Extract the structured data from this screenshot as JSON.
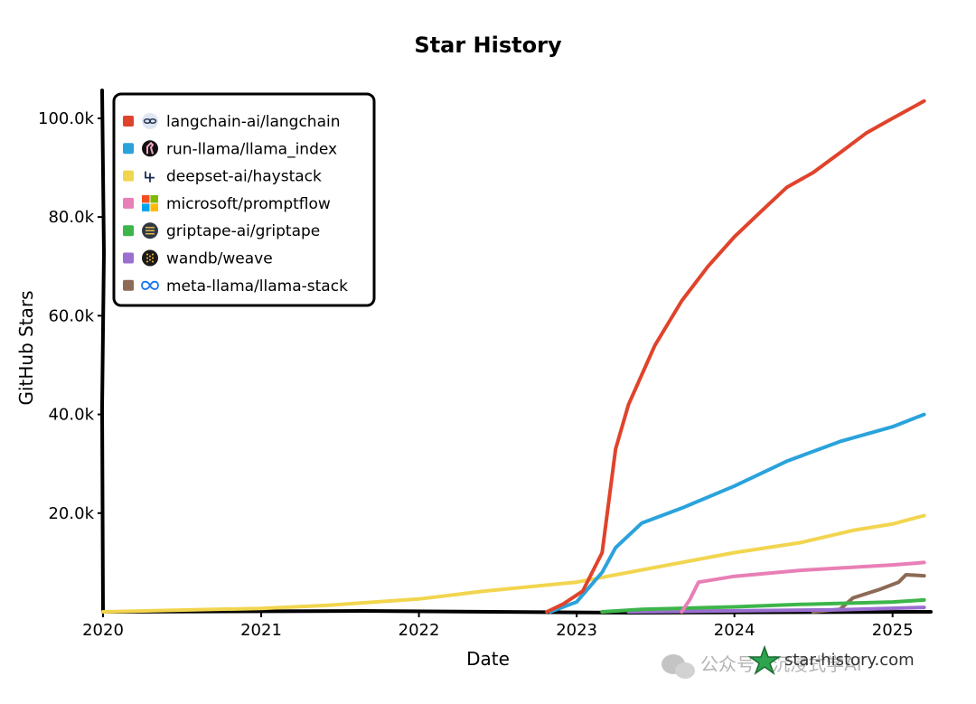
{
  "chart_data": {
    "type": "line",
    "title": "Star History",
    "xlabel": "Date",
    "ylabel": "GitHub Stars",
    "xlim": [
      "2020-01-01",
      "2025-03-20"
    ],
    "ylim": [
      0,
      102000
    ],
    "x_ticks": [
      "2020",
      "2021",
      "2022",
      "2023",
      "2024",
      "2025"
    ],
    "y_ticks": [
      "20.0k",
      "40.0k",
      "60.0k",
      "80.0k",
      "100.0k"
    ],
    "y_tick_values": [
      20000,
      40000,
      60000,
      80000,
      100000
    ],
    "grid": false,
    "legend_position": "top-left",
    "series": [
      {
        "name": "langchain-ai/langchain",
        "color": "#e0432b",
        "icon": "parrot-chain-icon",
        "points": [
          [
            "2022-10-24",
            0
          ],
          [
            "2022-12-01",
            1600
          ],
          [
            "2023-01-15",
            4200
          ],
          [
            "2023-03-01",
            12000
          ],
          [
            "2023-04-01",
            33000
          ],
          [
            "2023-05-01",
            42000
          ],
          [
            "2023-07-01",
            54000
          ],
          [
            "2023-09-01",
            63000
          ],
          [
            "2023-11-01",
            70000
          ],
          [
            "2024-01-01",
            76000
          ],
          [
            "2024-03-01",
            81000
          ],
          [
            "2024-05-01",
            86000
          ],
          [
            "2024-07-01",
            89000
          ],
          [
            "2024-09-01",
            93000
          ],
          [
            "2024-11-01",
            97000
          ],
          [
            "2025-01-01",
            100000
          ],
          [
            "2025-03-15",
            103500
          ]
        ]
      },
      {
        "name": "run-llama/llama_index",
        "color": "#2aa3dc",
        "icon": "llama-icon",
        "points": [
          [
            "2022-11-01",
            0
          ],
          [
            "2023-01-01",
            2000
          ],
          [
            "2023-03-01",
            8000
          ],
          [
            "2023-04-01",
            13000
          ],
          [
            "2023-06-01",
            18000
          ],
          [
            "2023-09-01",
            21000
          ],
          [
            "2024-01-01",
            25500
          ],
          [
            "2024-05-01",
            30500
          ],
          [
            "2024-09-01",
            34500
          ],
          [
            "2025-01-01",
            37500
          ],
          [
            "2025-03-15",
            40000
          ]
        ]
      },
      {
        "name": "deepset-ai/haystack",
        "color": "#f2d54f",
        "icon": "haystack-icon",
        "points": [
          [
            "2020-01-01",
            0
          ],
          [
            "2020-06-01",
            300
          ],
          [
            "2021-01-01",
            700
          ],
          [
            "2021-06-01",
            1300
          ],
          [
            "2022-01-01",
            2600
          ],
          [
            "2022-06-01",
            4200
          ],
          [
            "2023-01-01",
            6000
          ],
          [
            "2023-06-01",
            8500
          ],
          [
            "2024-01-01",
            12000
          ],
          [
            "2024-06-01",
            14000
          ],
          [
            "2024-10-01",
            16500
          ],
          [
            "2025-01-01",
            17800
          ],
          [
            "2025-03-15",
            19500
          ]
        ]
      },
      {
        "name": "microsoft/promptflow",
        "color": "#e87fb6",
        "icon": "microsoft-icon",
        "points": [
          [
            "2023-09-01",
            0
          ],
          [
            "2023-09-20",
            2500
          ],
          [
            "2023-10-10",
            6000
          ],
          [
            "2024-01-01",
            7200
          ],
          [
            "2024-06-01",
            8400
          ],
          [
            "2025-01-01",
            9500
          ],
          [
            "2025-03-15",
            10000
          ]
        ]
      },
      {
        "name": "griptape-ai/griptape",
        "color": "#3db54a",
        "icon": "griptape-icon",
        "points": [
          [
            "2023-03-01",
            0
          ],
          [
            "2023-06-01",
            500
          ],
          [
            "2024-01-01",
            1000
          ],
          [
            "2024-06-01",
            1500
          ],
          [
            "2025-01-01",
            2000
          ],
          [
            "2025-03-15",
            2400
          ]
        ]
      },
      {
        "name": "wandb/weave",
        "color": "#9a6fd0",
        "icon": "wandb-icon",
        "points": [
          [
            "2023-05-01",
            0
          ],
          [
            "2024-01-01",
            200
          ],
          [
            "2024-09-01",
            400
          ],
          [
            "2025-03-15",
            900
          ]
        ]
      },
      {
        "name": "meta-llama/llama-stack",
        "color": "#8c6a55",
        "icon": "meta-infinity-icon",
        "points": [
          [
            "2024-07-01",
            0
          ],
          [
            "2024-09-01",
            500
          ],
          [
            "2024-10-01",
            2800
          ],
          [
            "2024-12-01",
            4500
          ],
          [
            "2025-01-15",
            6000
          ],
          [
            "2025-02-01",
            7500
          ],
          [
            "2025-03-15",
            7300
          ]
        ]
      }
    ]
  },
  "watermark": {
    "site": "star-history.com",
    "credit": "公众号 · 沉浸式学AI"
  }
}
